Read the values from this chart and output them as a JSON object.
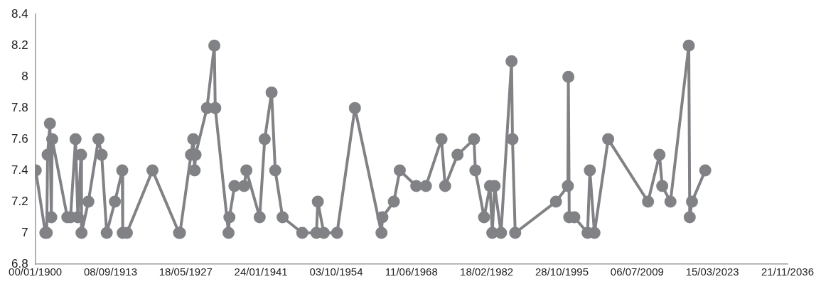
{
  "chart_data": {
    "type": "line",
    "marker": "circle",
    "grid": false,
    "legend": false,
    "x": [
      "1900-02",
      "1901-11",
      "1902-02",
      "1902-04",
      "1902-09",
      "1902-12",
      "1903-02",
      "1905-11",
      "1906-06",
      "1907-05",
      "1907-10",
      "1908-05",
      "1908-06",
      "1909-09",
      "1911-07",
      "1912-02",
      "1913-01",
      "1914-07",
      "1915-11",
      "1915-12",
      "1916-09",
      "1921-05",
      "1926-03",
      "1926-05",
      "1928-05",
      "1928-10",
      "1929-01",
      "1929-03",
      "1931-04",
      "1932-08",
      "1932-10",
      "1935-03",
      "1935-05",
      "1936-04",
      "1938-01",
      "1938-06",
      "1940-11",
      "1941-10",
      "1943-01",
      "1943-09",
      "1945-01",
      "1948-08",
      "1951-03",
      "1951-06",
      "1952-07",
      "1954-12",
      "1958-03",
      "1963-01",
      "1963-03",
      "1965-04",
      "1966-05",
      "1969-05",
      "1971-02",
      "1973-12",
      "1974-08",
      "1976-11",
      "1979-11",
      "1980-02",
      "1981-09",
      "1982-10",
      "1983-03",
      "1983-08",
      "1984-10",
      "1986-09",
      "1986-11",
      "1987-05",
      "1994-10",
      "1996-12",
      "1997-01",
      "1997-03",
      "1998-02",
      "2000-07",
      "2000-12",
      "2001-10",
      "2004-04",
      "2011-07",
      "2013-08",
      "2014-02",
      "2015-08",
      "2018-12",
      "2019-02",
      "2019-07",
      "2021-12"
    ],
    "series": [
      {
        "color": "#808285",
        "values": [
          7.4,
          7.0,
          7.0,
          7.5,
          7.7,
          7.1,
          7.6,
          7.1,
          7.1,
          7.6,
          7.1,
          7.5,
          7.0,
          7.2,
          7.6,
          7.5,
          7.0,
          7.2,
          7.4,
          7.0,
          7.0,
          7.4,
          7.0,
          7.0,
          7.5,
          7.6,
          7.4,
          7.5,
          7.8,
          8.2,
          7.8,
          7.0,
          7.1,
          7.3,
          7.3,
          7.4,
          7.1,
          7.6,
          7.9,
          7.4,
          7.1,
          7.0,
          7.0,
          7.2,
          7.0,
          7.0,
          7.8,
          7.0,
          7.1,
          7.2,
          7.4,
          7.3,
          7.3,
          7.6,
          7.3,
          7.5,
          7.6,
          7.4,
          7.1,
          7.3,
          7.0,
          7.3,
          7.0,
          8.1,
          7.6,
          7.0,
          7.2,
          7.3,
          8.0,
          7.1,
          7.1,
          7.0,
          7.4,
          7.0,
          7.6,
          7.2,
          7.5,
          7.3,
          7.2,
          8.2,
          7.1,
          7.2,
          7.4
        ]
      }
    ],
    "xlim": [
      "1900-01-01",
      "2036-11-21"
    ],
    "xticks": [
      {
        "value": "1900-01-01",
        "label": "00/01/1900"
      },
      {
        "value": "1913-09-08",
        "label": "08/09/1913"
      },
      {
        "value": "1927-05-18",
        "label": "18/05/1927"
      },
      {
        "value": "1941-01-24",
        "label": "24/01/1941"
      },
      {
        "value": "1954-10-03",
        "label": "03/10/1954"
      },
      {
        "value": "1968-06-11",
        "label": "11/06/1968"
      },
      {
        "value": "1982-02-18",
        "label": "18/02/1982"
      },
      {
        "value": "1995-10-28",
        "label": "28/10/1995"
      },
      {
        "value": "2009-07-06",
        "label": "06/07/2009"
      },
      {
        "value": "2023-03-15",
        "label": "15/03/2023"
      },
      {
        "value": "2036-11-21",
        "label": "21/11/2036"
      }
    ],
    "ylim": [
      6.8,
      8.4
    ],
    "yticks": [
      6.8,
      7,
      7.2,
      7.4,
      7.6,
      7.8,
      8,
      8.2,
      8.4
    ]
  }
}
